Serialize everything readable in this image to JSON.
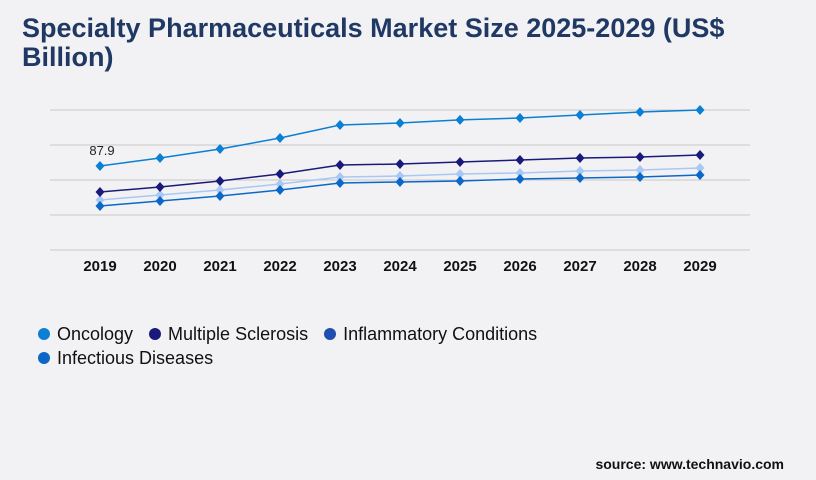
{
  "title": "Specialty Pharmaceuticals Market Size 2025-2029 (US$ Billion)",
  "source": "source: www.technavio.com",
  "chart_data": {
    "type": "line",
    "title": "Specialty Pharmaceuticals Market Size 2025-2029 (US$ Billion)",
    "x": [
      "2019",
      "2020",
      "2021",
      "2022",
      "2023",
      "2024",
      "2025",
      "2026",
      "2027",
      "2028",
      "2029"
    ],
    "grid": true,
    "legend": "bottom-left",
    "annotations": [
      {
        "series": "Oncology",
        "x": "2019",
        "label": "87.9"
      }
    ],
    "series": [
      {
        "name": "Oncology",
        "color": "#0a7fd4",
        "legend_color": "#0a7fd4",
        "values": [
          87.9,
          96.3,
          105.7,
          117.2,
          130.8,
          132.9,
          136.1,
          138.1,
          141.3,
          144.4,
          146.5
        ]
      },
      {
        "name": "Multiple Sclerosis",
        "color": "#1a1a7a",
        "legend_color": "#1a1a7a",
        "values": [
          60.7,
          65.9,
          72.2,
          79.5,
          88.9,
          90.0,
          92.1,
          94.2,
          96.3,
          97.3,
          99.4
        ]
      },
      {
        "name": "Inflammatory Conditions",
        "color": "#a9c8f5",
        "legend_color": "#1f4fb0",
        "values": [
          52.3,
          57.6,
          62.8,
          69.1,
          76.4,
          77.4,
          79.5,
          80.6,
          82.7,
          83.7,
          85.8
        ]
      },
      {
        "name": "Infectious Diseases",
        "color": "#0b68c8",
        "legend_color": "#0b68c8",
        "values": [
          46.0,
          51.3,
          56.5,
          62.8,
          70.1,
          71.2,
          72.2,
          74.3,
          75.3,
          76.4,
          78.5
        ]
      }
    ]
  }
}
